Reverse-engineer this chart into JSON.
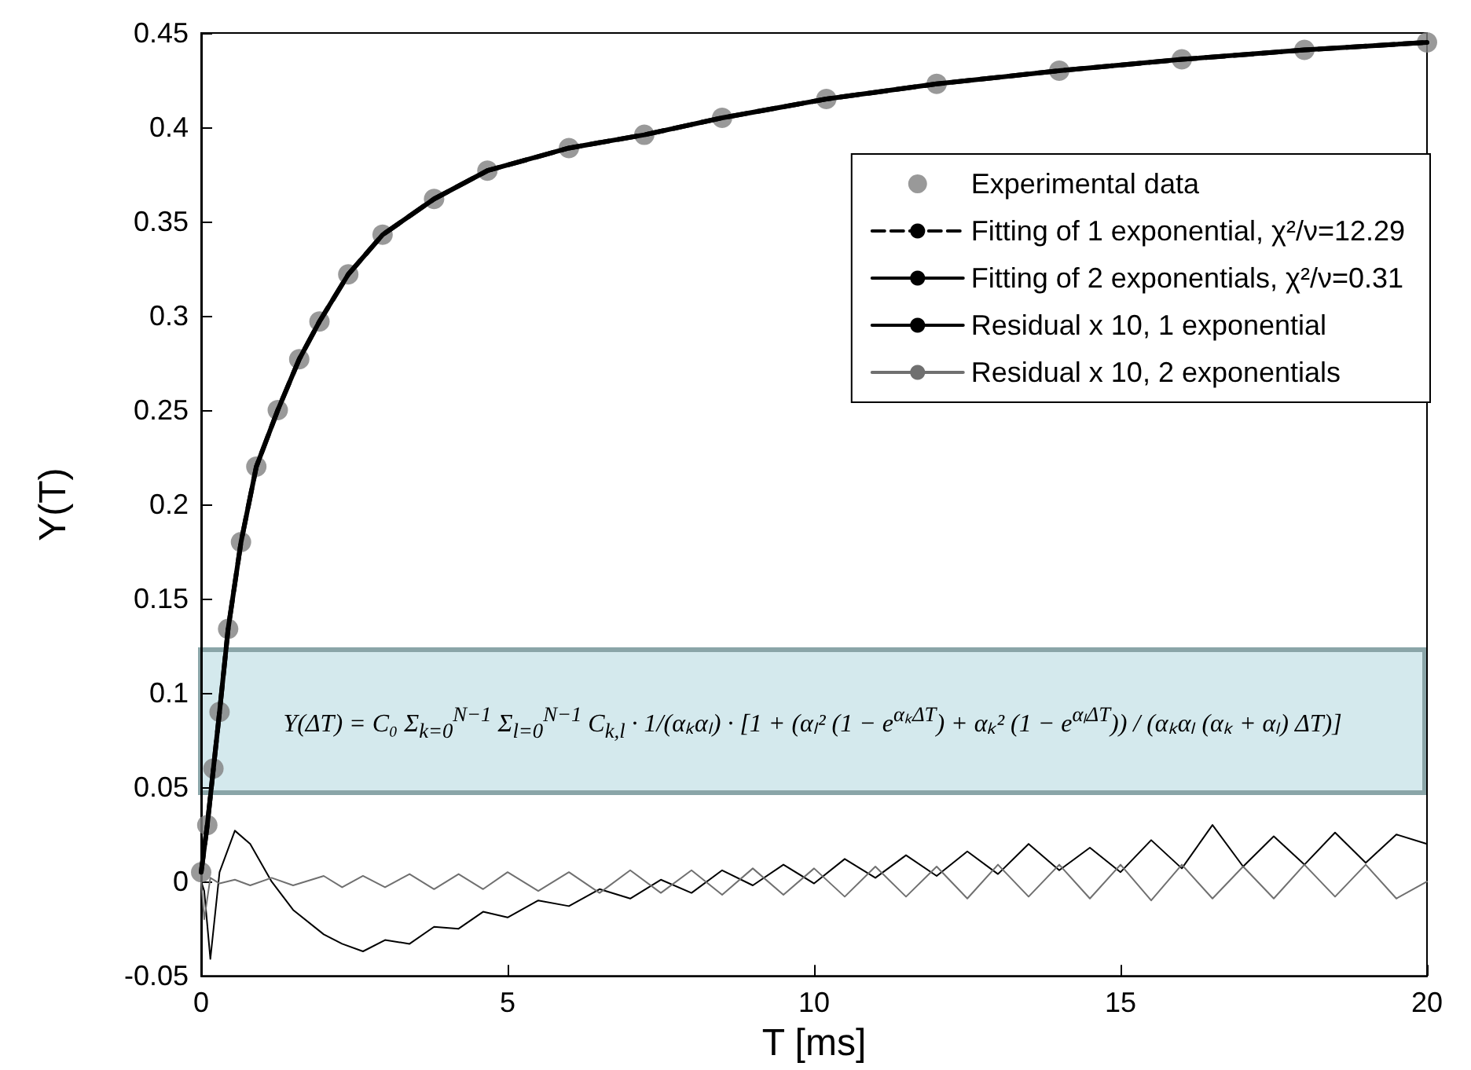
{
  "chart_data": {
    "type": "line",
    "xlabel": "T [ms]",
    "ylabel": "Y(T)",
    "annotations": [
      "Y(ΔT) = C₀ Σ$_{k=0}$$^{N−1}$ Σ$_{l=0}$$^{N−1}$ C$_{k,l}$ · 1/(αₖαₗ) · [1 + (αₗ² (1 − e$^{αₖΔT}$) + αₖ² (1 − e$^{αₗΔT}$)) / (αₖαₗ (αₖ + αₗ) ΔT)]"
    ],
    "x": [
      0,
      0.1,
      0.2,
      0.3,
      0.44,
      0.65,
      0.9,
      1.25,
      1.6,
      1.93,
      2.4,
      2.96,
      3.8,
      4.67,
      6,
      7.23,
      8.5,
      10.2,
      12,
      14,
      16,
      18,
      20
    ],
    "series": [
      {
        "name": "Experimental data",
        "type": "scatter",
        "marker": "circle",
        "color": "#808080",
        "values": [
          0.005,
          0.03,
          0.06,
          0.09,
          0.134,
          0.18,
          0.22,
          0.25,
          0.277,
          0.297,
          0.322,
          0.343,
          0.362,
          0.377,
          0.389,
          0.396,
          0.405,
          0.415,
          0.423,
          0.43,
          0.436,
          0.441,
          0.445
        ]
      },
      {
        "name": "Fitting of 1 exponential, χ²/ν=12.29",
        "line_style": "dashed",
        "color": "#000000",
        "values": [
          0.005,
          0.03,
          0.06,
          0.09,
          0.134,
          0.18,
          0.22,
          0.25,
          0.277,
          0.297,
          0.322,
          0.343,
          0.362,
          0.377,
          0.389,
          0.396,
          0.405,
          0.415,
          0.423,
          0.43,
          0.436,
          0.441,
          0.445
        ]
      },
      {
        "name": "Fitting of 2 exponentials, χ²/ν=0.31",
        "line_style": "solid",
        "color": "#000000",
        "values": [
          0.005,
          0.03,
          0.06,
          0.09,
          0.134,
          0.18,
          0.22,
          0.25,
          0.277,
          0.297,
          0.322,
          0.343,
          0.362,
          0.377,
          0.389,
          0.396,
          0.405,
          0.415,
          0.423,
          0.43,
          0.436,
          0.441,
          0.445
        ]
      },
      {
        "name": "Residual x 10, 1 exponential",
        "line_style": "solid",
        "color": "#000000",
        "x": [
          0,
          0.05,
          0.15,
          0.3,
          0.55,
          0.8,
          1.15,
          1.5,
          2,
          2.3,
          2.64,
          3,
          3.4,
          3.8,
          4.2,
          4.6,
          5,
          5.5,
          6,
          6.5,
          7,
          7.5,
          8,
          8.5,
          9,
          9.5,
          10,
          10.5,
          11,
          11.5,
          12,
          12.5,
          13,
          13.5,
          14,
          14.5,
          15,
          15.5,
          16,
          16.5,
          17,
          17.5,
          18,
          18.5,
          19,
          19.5,
          20
        ],
        "values": [
          0,
          -0.005,
          -0.041,
          0.005,
          0.027,
          0.02,
          0,
          -0.015,
          -0.028,
          -0.033,
          -0.037,
          -0.031,
          -0.033,
          -0.024,
          -0.025,
          -0.016,
          -0.019,
          -0.01,
          -0.013,
          -0.004,
          -0.009,
          0.001,
          -0.006,
          0.006,
          -0.002,
          0.009,
          -0.001,
          0.012,
          0.002,
          0.014,
          0.003,
          0.016,
          0.004,
          0.02,
          0.006,
          0.018,
          0.005,
          0.022,
          0.007,
          0.03,
          0.008,
          0.024,
          0.009,
          0.026,
          0.01,
          0.025,
          0.02
        ]
      },
      {
        "name": "Residual x 10, 2 exponentials",
        "line_style": "solid",
        "color": "#707070",
        "x": [
          0,
          0.05,
          0.15,
          0.3,
          0.55,
          0.8,
          1.15,
          1.5,
          2,
          2.3,
          2.64,
          3,
          3.4,
          3.8,
          4.2,
          4.6,
          5,
          5.5,
          6,
          6.5,
          7,
          7.5,
          8,
          8.5,
          9,
          9.5,
          10,
          10.5,
          11,
          11.5,
          12,
          12.5,
          13,
          13.5,
          14,
          14.5,
          15,
          15.5,
          16,
          16.5,
          17,
          17.5,
          18,
          18.5,
          19,
          19.5,
          20
        ],
        "values": [
          0,
          -0.02,
          0.002,
          -0.001,
          0.001,
          -0.002,
          0.002,
          -0.002,
          0.003,
          -0.003,
          0.003,
          -0.003,
          0.004,
          -0.004,
          0.004,
          -0.004,
          0.005,
          -0.005,
          0.005,
          -0.006,
          0.006,
          -0.006,
          0.006,
          -0.007,
          0.007,
          -0.007,
          0.007,
          -0.008,
          0.008,
          -0.008,
          0.008,
          -0.009,
          0.009,
          -0.008,
          0.009,
          -0.009,
          0.009,
          -0.01,
          0.009,
          -0.009,
          0.008,
          -0.009,
          0.009,
          -0.008,
          0.009,
          -0.009,
          0
        ]
      }
    ],
    "xlim": [
      0,
      20
    ],
    "xticks": [
      0,
      5,
      10,
      15,
      20
    ],
    "ylim": [
      -0.05,
      0.45
    ],
    "yticks": [
      -0.05,
      0,
      0.05,
      0.1,
      0.15,
      0.2,
      0.25,
      0.3,
      0.35,
      0.4,
      0.45
    ],
    "legend": "top right"
  }
}
